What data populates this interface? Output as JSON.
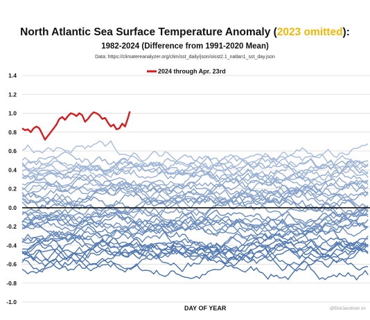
{
  "header": {
    "title_prefix": "North Atlantic Sea Surface Temperature Anomaly (",
    "title_highlight": "2023 omitted",
    "title_suffix": "):",
    "subtitle": "1982-2024 (Difference from 1991-2020 Mean)",
    "data_source": "Data: https://climatereanalyzer.org/clim/sst_daily/json/oisst2.1_natlan1_sst_day.json"
  },
  "footer": {
    "xlabel": "DAY OF YEAR",
    "credit": "@EliotJacobson on"
  },
  "colors": {
    "highlight": "#f2b705",
    "series_2024": "#d7191c",
    "background_series": "#4a7fc0",
    "zero_line": "#000000"
  },
  "chart_data": {
    "type": "line",
    "title": "North Atlantic Sea Surface Temperature Anomaly (2023 omitted):",
    "subtitle": "1982-2024 (Difference from 1991-2020 Mean)",
    "xlabel": "DAY OF YEAR",
    "ylabel": "",
    "ylim": [
      -1.0,
      1.4
    ],
    "xlim": [
      1,
      366
    ],
    "yticks": [
      "1.4",
      "1.2",
      "1.0",
      "0.8",
      "0.6",
      "0.4",
      "0.2",
      "0.0",
      "-0.2",
      "-0.4",
      "-0.6",
      "-0.8",
      "-1.0"
    ],
    "grid": true,
    "legend": {
      "placement": "top-center",
      "entries": [
        "2024 through Apr. 23rd"
      ]
    },
    "highlight_series": {
      "name": "2024 through Apr. 23rd",
      "x": [
        1,
        4,
        7,
        10,
        13,
        16,
        19,
        22,
        25,
        28,
        31,
        34,
        37,
        40,
        43,
        46,
        49,
        52,
        55,
        58,
        61,
        64,
        67,
        70,
        73,
        76,
        79,
        82,
        85,
        88,
        91,
        94,
        97,
        100,
        103,
        106,
        109,
        112,
        114
      ],
      "values": [
        0.84,
        0.82,
        0.83,
        0.8,
        0.84,
        0.86,
        0.84,
        0.78,
        0.72,
        0.76,
        0.8,
        0.84,
        0.88,
        0.94,
        0.96,
        0.93,
        0.97,
        1.0,
        0.99,
        0.97,
        1.0,
        0.98,
        0.91,
        0.94,
        0.98,
        1.01,
        1.0,
        0.98,
        0.94,
        0.95,
        0.9,
        0.86,
        0.88,
        0.83,
        0.84,
        0.89,
        0.86,
        0.95,
        1.02
      ]
    },
    "background_series_count": 41,
    "background_series_years": "1982-2022",
    "background_series_range": [
      -0.85,
      0.75
    ]
  }
}
